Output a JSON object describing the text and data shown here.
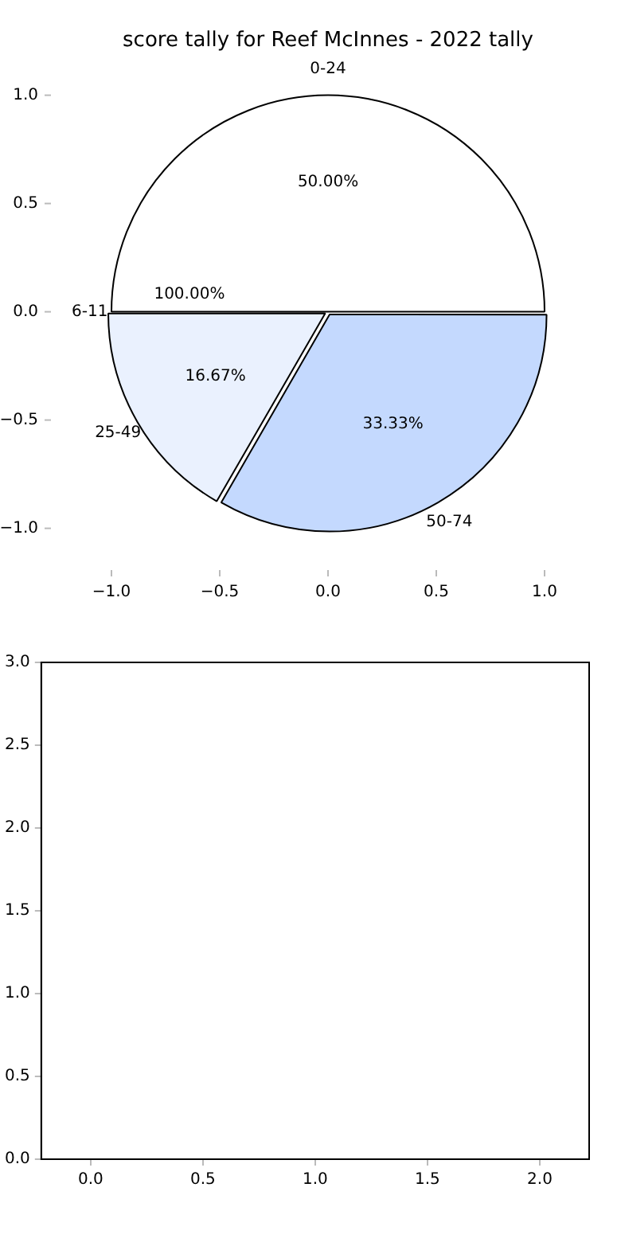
{
  "chart_data": [
    {
      "type": "pie",
      "title": "score tally for Reef McInnes - 2022 tally",
      "categories": [
        "0-24",
        "25-49",
        "50-74"
      ],
      "values": [
        50,
        16.67,
        33.33
      ],
      "colors": [
        "#ffffff",
        "#eaf1fe",
        "#c4d9fe"
      ],
      "value_labels": [
        "50.00%",
        "16.67%",
        "33.33%"
      ],
      "annotations": [
        "6-11",
        "100.00%",
        "−1.0",
        "−0.5",
        "0.0",
        "0.5",
        "1.0",
        "1.0",
        "0.5",
        "0.0",
        "−0.5",
        "−1.0"
      ],
      "legend": false
    },
    {
      "type": "scatter",
      "legend": false,
      "grid": false,
      "xlim": [
        -0.22,
        2.22
      ],
      "ylim": [
        0,
        3
      ],
      "xticks": [
        {
          "value": 0,
          "label": "0.0"
        },
        {
          "value": 0.5,
          "label": "0.5"
        },
        {
          "value": 1,
          "label": "1.0"
        },
        {
          "value": 1.5,
          "label": "1.5"
        },
        {
          "value": 2,
          "label": "2.0"
        }
      ],
      "yticks": [
        {
          "value": 0,
          "label": "0.0"
        },
        {
          "value": 0.5,
          "label": "0.5"
        },
        {
          "value": 1,
          "label": "1.0"
        },
        {
          "value": 1.5,
          "label": "1.5"
        },
        {
          "value": 2,
          "label": "2.0"
        },
        {
          "value": 2.5,
          "label": "2.5"
        },
        {
          "value": 3,
          "label": "3.0"
        }
      ]
    }
  ]
}
